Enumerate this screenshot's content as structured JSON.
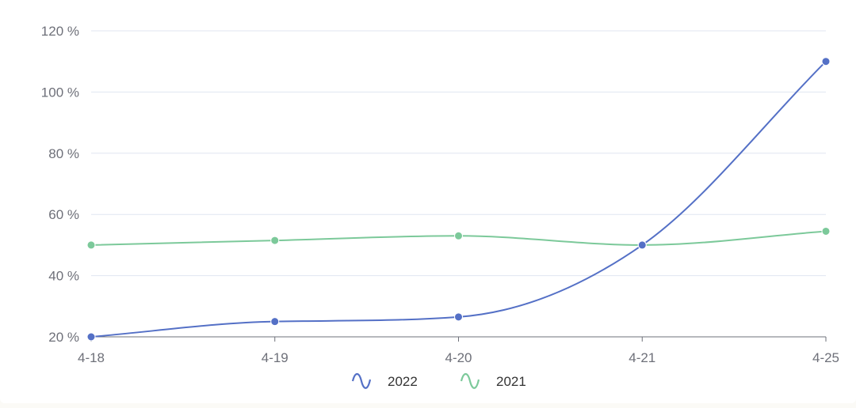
{
  "chart_data": {
    "type": "line",
    "smooth": true,
    "categories": [
      "4-18",
      "4-19",
      "4-20",
      "4-21",
      "4-25"
    ],
    "series": [
      {
        "name": "2022",
        "color": "#5470c6",
        "values": [
          20,
          25,
          26.5,
          50,
          110
        ]
      },
      {
        "name": "2021",
        "color": "#7cc99a",
        "values": [
          50,
          51.5,
          53,
          50,
          54.5
        ]
      }
    ],
    "ylim": [
      20,
      120
    ],
    "y_ticks": [
      20,
      40,
      60,
      80,
      100,
      120
    ],
    "y_tick_suffix": " %",
    "y_tick_labels": [
      "20 %",
      "40 %",
      "60 %",
      "80 %",
      "100 %",
      "120 %"
    ],
    "grid": true,
    "legend_position": "bottom-center",
    "title": "",
    "xlabel": "",
    "ylabel": ""
  }
}
